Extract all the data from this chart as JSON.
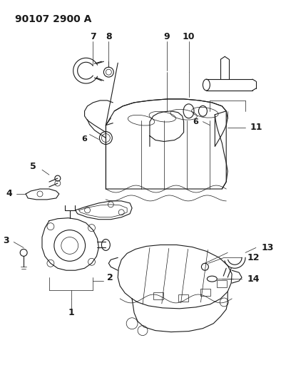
{
  "title": "90107 2900 A",
  "bg_color": "#ffffff",
  "line_color": "#1a1a1a",
  "title_fontsize": 10,
  "label_fontsize": 8,
  "fig_width": 4.02,
  "fig_height": 5.33,
  "dpi": 100
}
